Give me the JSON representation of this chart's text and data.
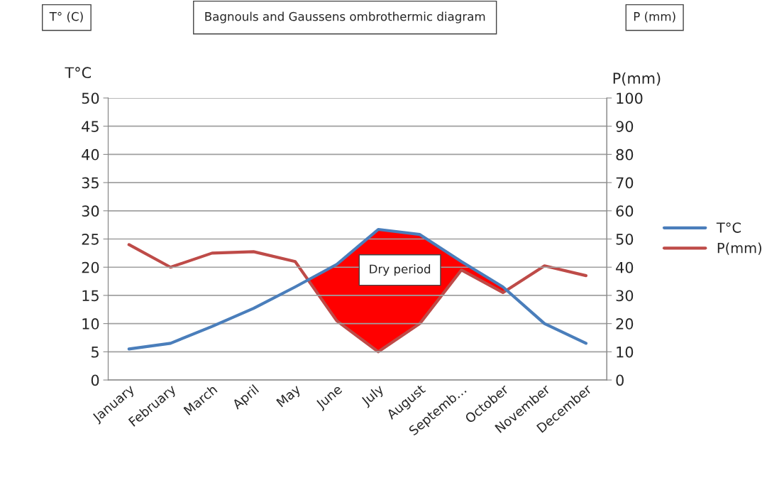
{
  "chart_data": {
    "type": "line",
    "title": "Bagnouls and Gaussens ombrothermic diagram",
    "categories": [
      "January",
      "February",
      "March",
      "April",
      "May",
      "June",
      "July",
      "August",
      "Septemb…",
      "October",
      "November",
      "December"
    ],
    "series": [
      {
        "name": "T°C",
        "color": "#4a7ebb",
        "values": [
          5.5,
          6.5,
          9.5,
          12.7,
          16.5,
          20.5,
          26.7,
          25.8,
          21,
          16.5,
          10,
          6.5
        ]
      },
      {
        "name": "P(mm)",
        "color": "#be4b48",
        "axis": "y2",
        "values": [
          48,
          40,
          45,
          45.5,
          42,
          21,
          10,
          20,
          39,
          31,
          40.5,
          37
        ]
      }
    ],
    "ylabel": "T°C",
    "y2label": "P(mm)",
    "ylim": [
      0,
      50
    ],
    "yticks": [
      0,
      5,
      10,
      15,
      20,
      25,
      30,
      35,
      40,
      45,
      50
    ],
    "y2lim": [
      0,
      100
    ],
    "y2ticks": [
      0,
      10,
      20,
      30,
      40,
      50,
      60,
      70,
      80,
      90,
      100
    ],
    "annotations": [
      "T° (C)",
      "P (mm)",
      "Dry period"
    ],
    "grid": "y",
    "legend": "right",
    "marker": "none",
    "line_style": "solid"
  }
}
